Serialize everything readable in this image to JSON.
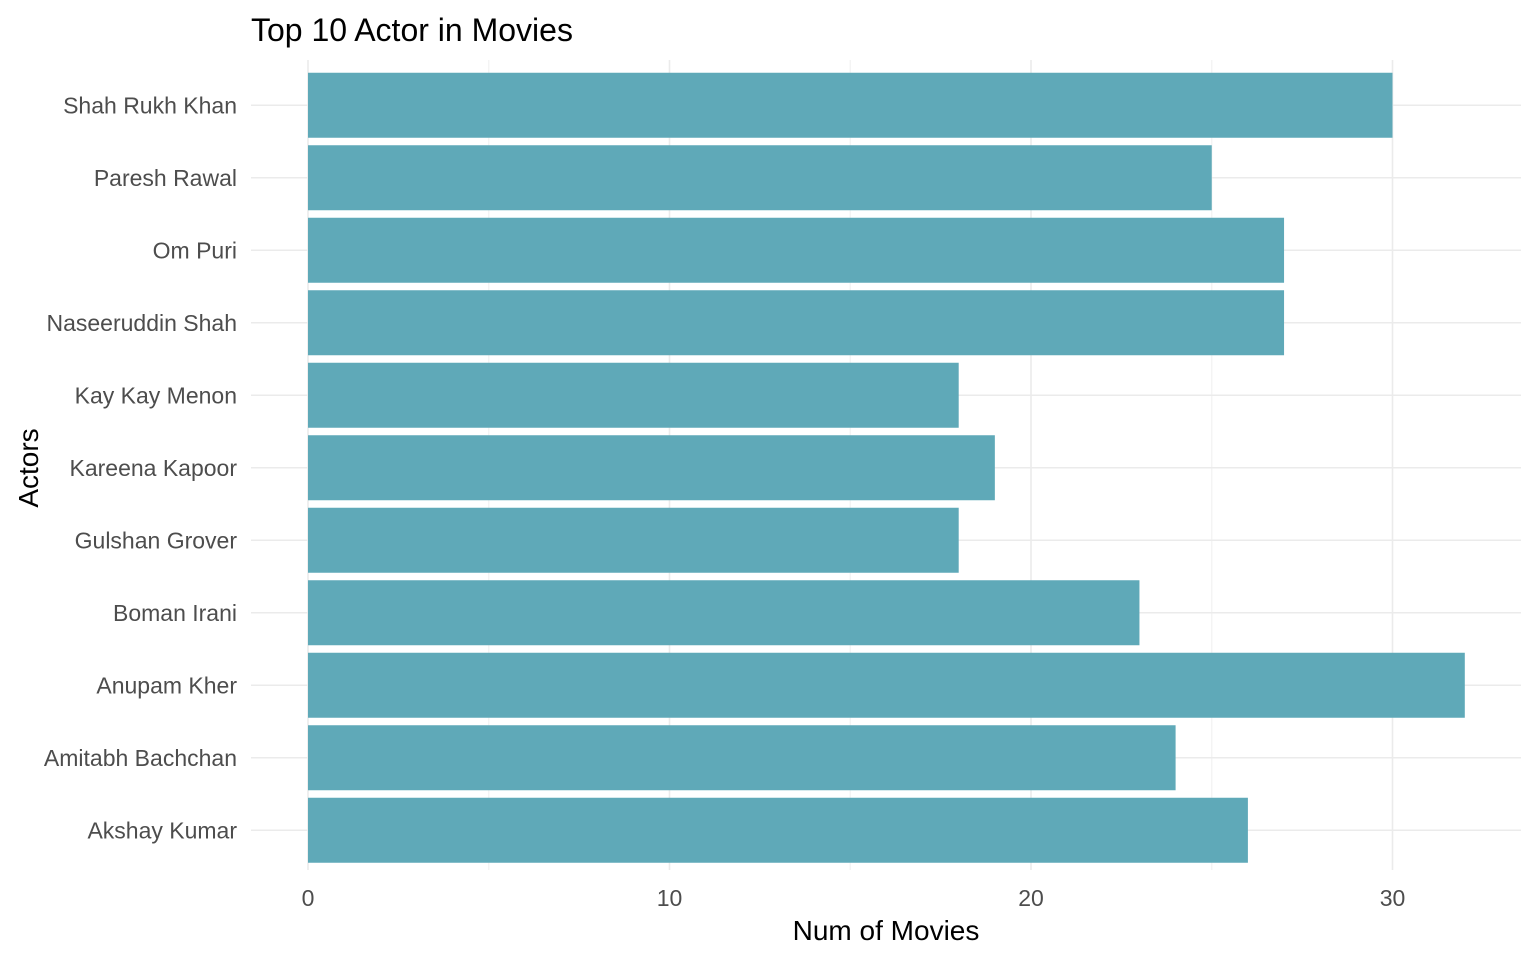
{
  "chart_data": {
    "type": "bar",
    "orientation": "horizontal",
    "title": "Top 10 Actor in Movies",
    "xlabel": "Num of Movies",
    "ylabel": "Actors",
    "categories": [
      "Akshay Kumar",
      "Amitabh Bachchan",
      "Anupam Kher",
      "Boman Irani",
      "Gulshan Grover",
      "Kareena Kapoor",
      "Kay Kay Menon",
      "Naseeruddin Shah",
      "Om Puri",
      "Paresh Rawal",
      "Shah Rukh Khan"
    ],
    "values": [
      26,
      24,
      32,
      23,
      18,
      19,
      18,
      27,
      27,
      25,
      30
    ],
    "xlim": [
      0,
      33.6
    ],
    "xticks": [
      0,
      10,
      20,
      30
    ],
    "grid": true,
    "bar_color": "#5fa9b8",
    "legend": "none"
  }
}
